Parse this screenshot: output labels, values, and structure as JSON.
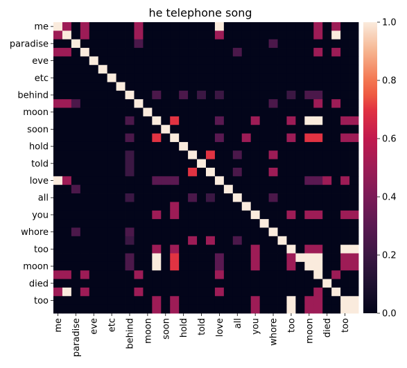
{
  "chart_data": {
    "type": "heatmap",
    "title": "he telephone song",
    "labels_all": [
      "me",
      "",
      "paradise",
      "",
      "eve",
      "",
      "etc",
      "",
      "behind",
      "",
      "moon",
      "",
      "soon",
      "",
      "hold",
      "",
      "told",
      "",
      "love",
      "",
      "all",
      "",
      "you",
      "",
      "whore",
      "",
      "too",
      "",
      "moon",
      "",
      "died",
      "",
      "too",
      ""
    ],
    "y_tick_labels": [
      "me",
      "paradise",
      "eve",
      "etc",
      "behind",
      "moon",
      "soon",
      "hold",
      "told",
      "love",
      "all",
      "you",
      "whore",
      "too",
      "moon",
      "died",
      "too"
    ],
    "x_tick_labels": [
      "me",
      "paradise",
      "eve",
      "etc",
      "behind",
      "moon",
      "soon",
      "hold",
      "told",
      "love",
      "all",
      "you",
      "whore",
      "too",
      "moon",
      "died",
      "too"
    ],
    "colorbar": {
      "min": 0.0,
      "max": 1.0,
      "ticks": [
        "0.0",
        "0.2",
        "0.4",
        "0.6",
        "0.8",
        "1.0"
      ],
      "colormap": "rocket"
    },
    "matrix_note": "rows/cols ordered as labels_all; values 0-1",
    "values": [
      [
        1,
        0.5,
        0,
        0.5,
        0,
        0,
        0,
        0,
        0,
        0.5,
        0,
        0,
        0,
        0,
        0,
        0,
        0,
        0,
        1,
        0,
        0,
        0,
        0,
        0,
        0,
        0,
        0,
        0,
        0,
        0.5,
        0,
        0.5,
        0,
        0
      ],
      [
        0.5,
        1,
        0,
        0.5,
        0,
        0,
        0,
        0,
        0,
        0.5,
        0,
        0,
        0,
        0,
        0,
        0,
        0,
        0,
        0.5,
        0,
        0,
        0,
        0,
        0,
        0,
        0,
        0,
        0,
        0,
        0.5,
        0,
        1,
        0,
        0
      ],
      [
        0,
        0,
        1,
        0,
        0,
        0,
        0,
        0,
        0,
        0.25,
        0,
        0,
        0,
        0,
        0,
        0,
        0,
        0,
        0,
        0,
        0,
        0,
        0,
        0,
        0.25,
        0,
        0,
        0,
        0,
        0,
        0,
        0,
        0,
        0
      ],
      [
        0.5,
        0.5,
        0,
        1,
        0,
        0,
        0,
        0,
        0,
        0,
        0,
        0,
        0,
        0,
        0,
        0,
        0,
        0,
        0,
        0,
        0.25,
        0,
        0,
        0,
        0,
        0,
        0,
        0,
        0,
        0.5,
        0,
        0.5,
        0,
        0
      ],
      [
        0,
        0,
        0,
        0,
        1,
        0,
        0,
        0,
        0,
        0,
        0,
        0,
        0,
        0,
        0,
        0,
        0,
        0,
        0,
        0,
        0,
        0,
        0,
        0,
        0,
        0,
        0,
        0,
        0,
        0,
        0,
        0,
        0,
        0
      ],
      [
        0,
        0,
        0,
        0,
        0,
        1,
        0,
        0,
        0,
        0,
        0,
        0,
        0,
        0,
        0,
        0,
        0,
        0,
        0,
        0,
        0,
        0,
        0,
        0,
        0,
        0,
        0,
        0,
        0,
        0,
        0,
        0,
        0,
        0
      ],
      [
        0,
        0,
        0,
        0,
        0,
        0,
        1,
        0,
        0,
        0,
        0,
        0,
        0,
        0,
        0,
        0,
        0,
        0,
        0,
        0,
        0,
        0,
        0,
        0,
        0,
        0,
        0,
        0,
        0,
        0,
        0,
        0,
        0,
        0
      ],
      [
        0,
        0,
        0,
        0,
        0,
        0,
        0,
        1,
        0,
        0,
        0,
        0,
        0,
        0,
        0,
        0,
        0,
        0,
        0,
        0,
        0,
        0,
        0,
        0,
        0,
        0,
        0,
        0,
        0,
        0,
        0,
        0,
        0,
        0
      ],
      [
        0,
        0,
        0,
        0,
        0,
        0,
        0,
        0,
        1,
        0,
        0,
        0.25,
        0,
        0,
        0.25,
        0,
        0.2,
        0,
        0.2,
        0,
        0,
        0,
        0,
        0,
        0,
        0,
        0.2,
        0,
        0.25,
        0.25,
        0,
        0,
        0,
        0
      ],
      [
        0.5,
        0.5,
        0.25,
        0,
        0,
        0,
        0,
        0,
        0,
        1,
        0,
        0,
        0,
        0,
        0,
        0,
        0,
        0,
        0,
        0,
        0,
        0,
        0,
        0,
        0.25,
        0,
        0,
        0,
        0,
        0.5,
        0,
        0.5,
        0,
        0
      ],
      [
        0,
        0,
        0,
        0,
        0,
        0,
        0,
        0,
        0,
        0,
        1,
        0,
        0,
        0,
        0,
        0,
        0,
        0,
        0,
        0,
        0,
        0,
        0,
        0,
        0,
        0,
        0,
        0,
        0,
        0,
        0,
        0,
        0,
        0
      ],
      [
        0,
        0,
        0,
        0,
        0,
        0,
        0,
        0,
        0.25,
        0,
        0,
        1,
        0,
        0.7,
        0,
        0,
        0,
        0,
        0.3,
        0,
        0,
        0,
        0.5,
        0,
        0,
        0,
        0.5,
        0,
        1,
        1,
        0,
        0,
        0.5,
        0.5
      ],
      [
        0,
        0,
        0,
        0,
        0,
        0,
        0,
        0,
        0,
        0,
        0,
        0,
        1,
        0,
        0,
        0,
        0,
        0,
        0,
        0,
        0,
        0,
        0,
        0,
        0,
        0,
        0,
        0,
        0,
        0,
        0,
        0,
        0,
        0
      ],
      [
        0,
        0,
        0,
        0,
        0,
        0,
        0,
        0,
        0.25,
        0,
        0,
        0.7,
        0,
        1,
        0,
        0,
        0,
        0,
        0.3,
        0,
        0,
        0.5,
        0,
        0,
        0,
        0,
        0.5,
        0,
        0.7,
        0.7,
        0,
        0,
        0.5,
        0.5
      ],
      [
        0,
        0,
        0,
        0,
        0,
        0,
        0,
        0,
        0,
        0,
        0,
        0,
        0,
        0,
        1,
        0,
        0,
        0,
        0,
        0,
        0,
        0,
        0,
        0,
        0,
        0,
        0,
        0,
        0,
        0,
        0,
        0,
        0,
        0
      ],
      [
        0,
        0,
        0,
        0,
        0,
        0,
        0,
        0,
        0.2,
        0,
        0,
        0,
        0,
        0,
        0,
        1,
        0,
        0.7,
        0,
        0,
        0.25,
        0,
        0,
        0,
        0.5,
        0,
        0,
        0,
        0,
        0,
        0,
        0,
        0,
        0
      ],
      [
        0,
        0,
        0,
        0,
        0,
        0,
        0,
        0,
        0.2,
        0,
        0,
        0,
        0,
        0,
        0,
        0,
        1,
        0,
        0,
        0,
        0,
        0,
        0,
        0,
        0,
        0,
        0,
        0,
        0,
        0,
        0,
        0,
        0,
        0
      ],
      [
        0,
        0,
        0,
        0,
        0,
        0,
        0,
        0,
        0.2,
        0,
        0,
        0,
        0,
        0,
        0,
        0.7,
        0,
        1,
        0,
        0,
        0.25,
        0,
        0,
        0,
        0.5,
        0,
        0,
        0,
        0,
        0,
        0,
        0,
        0,
        0
      ],
      [
        1,
        0.5,
        0,
        0,
        0,
        0,
        0,
        0,
        0,
        0,
        0,
        0.3,
        0.3,
        0.3,
        0,
        0,
        0,
        0,
        1,
        0,
        0,
        0,
        0,
        0,
        0,
        0,
        0,
        0,
        0.3,
        0.3,
        0.5,
        0,
        0.5,
        0
      ],
      [
        0,
        0,
        0.25,
        0,
        0,
        0,
        0,
        0,
        0,
        0,
        0,
        0,
        0,
        0,
        0,
        0,
        0,
        0,
        0,
        1,
        0,
        0,
        0,
        0,
        0,
        0,
        0,
        0,
        0,
        0,
        0,
        0,
        0,
        0
      ],
      [
        0,
        0,
        0,
        0,
        0,
        0,
        0,
        0,
        0.2,
        0,
        0,
        0,
        0,
        0,
        0,
        0.25,
        0,
        0.2,
        0,
        0,
        1,
        0,
        0,
        0,
        0.25,
        0,
        0,
        0,
        0,
        0,
        0,
        0,
        0,
        0
      ],
      [
        0,
        0,
        0,
        0,
        0,
        0,
        0,
        0,
        0,
        0,
        0,
        0,
        0,
        0.5,
        0,
        0,
        0,
        0,
        0,
        0,
        0,
        1,
        0,
        0,
        0,
        0,
        0,
        0,
        0,
        0,
        0,
        0,
        0,
        0
      ],
      [
        0,
        0,
        0,
        0,
        0,
        0,
        0,
        0,
        0,
        0,
        0,
        0.5,
        0,
        0.5,
        0,
        0,
        0,
        0,
        0,
        0,
        0,
        0,
        1,
        0,
        0,
        0,
        0.5,
        0,
        0.5,
        0.5,
        0,
        0,
        0.5,
        0.5
      ],
      [
        0,
        0,
        0,
        0,
        0,
        0,
        0,
        0,
        0,
        0,
        0,
        0,
        0,
        0,
        0,
        0,
        0,
        0,
        0,
        0,
        0,
        0,
        0,
        1,
        0,
        0,
        0,
        0,
        0,
        0,
        0,
        0,
        0,
        0
      ],
      [
        0,
        0,
        0.25,
        0,
        0,
        0,
        0,
        0,
        0.25,
        0,
        0,
        0,
        0,
        0,
        0,
        0,
        0,
        0,
        0,
        0,
        0,
        0,
        0,
        0,
        1,
        0,
        0,
        0,
        0,
        0,
        0,
        0,
        0,
        0
      ],
      [
        0,
        0,
        0,
        0,
        0,
        0,
        0,
        0,
        0.2,
        0,
        0,
        0,
        0,
        0,
        0,
        0.5,
        0,
        0.5,
        0,
        0,
        0.25,
        0,
        0,
        0,
        0,
        1,
        0,
        0,
        0,
        0,
        0,
        0,
        0,
        0
      ],
      [
        0,
        0,
        0,
        0,
        0,
        0,
        0,
        0,
        0,
        0,
        0,
        0.5,
        0,
        0.5,
        0,
        0,
        0,
        0,
        0,
        0,
        0,
        0,
        0.5,
        0,
        0,
        0,
        1,
        0,
        0.5,
        0.5,
        0,
        0,
        1,
        1
      ],
      [
        0,
        0,
        0,
        0,
        0,
        0,
        0,
        0,
        0.25,
        0,
        0,
        1,
        0,
        0.7,
        0,
        0,
        0,
        0,
        0.3,
        0,
        0,
        0,
        0.5,
        0,
        0,
        0,
        0.5,
        1,
        1,
        1,
        0,
        0,
        0.5,
        0.5
      ],
      [
        0,
        0,
        0,
        0,
        0,
        0,
        0,
        0,
        0.25,
        0,
        0,
        1,
        0,
        0.7,
        0,
        0,
        0,
        0,
        0.3,
        0,
        0,
        0,
        0.5,
        0,
        0,
        0,
        0.5,
        0,
        1,
        1,
        0,
        0,
        0.5,
        0.5
      ],
      [
        0.5,
        0.5,
        0,
        0.5,
        0,
        0,
        0,
        0,
        0,
        0.5,
        0,
        0,
        0,
        0,
        0,
        0,
        0,
        0,
        0.5,
        0,
        0,
        0,
        0,
        0,
        0,
        0,
        0,
        0,
        0,
        1,
        0,
        0.5,
        0,
        0
      ],
      [
        0,
        0,
        0,
        0,
        0,
        0,
        0,
        0,
        0,
        0,
        0,
        0,
        0,
        0,
        0,
        0,
        0,
        0,
        0,
        0,
        0,
        0,
        0,
        0,
        0,
        0,
        0,
        0,
        0,
        0,
        1,
        0,
        0,
        0
      ],
      [
        0.5,
        1,
        0,
        0.5,
        0,
        0,
        0,
        0,
        0,
        0.5,
        0,
        0,
        0,
        0,
        0,
        0,
        0,
        0,
        0.5,
        0,
        0,
        0,
        0,
        0,
        0,
        0,
        0,
        0,
        0,
        0.5,
        0,
        1,
        0,
        0
      ],
      [
        0,
        0,
        0,
        0,
        0,
        0,
        0,
        0,
        0,
        0,
        0,
        0.5,
        0,
        0.5,
        0,
        0,
        0,
        0,
        0,
        0,
        0,
        0,
        0.5,
        0,
        0,
        0,
        1,
        0,
        0.5,
        0.5,
        0,
        0,
        1,
        1
      ],
      [
        0,
        0,
        0,
        0,
        0,
        0,
        0,
        0,
        0,
        0,
        0,
        0.5,
        0,
        0.5,
        0,
        0,
        0,
        0,
        0,
        0,
        0,
        0,
        0.5,
        0,
        0,
        0,
        1,
        0,
        0.5,
        0.5,
        0,
        0,
        1,
        1
      ]
    ]
  }
}
